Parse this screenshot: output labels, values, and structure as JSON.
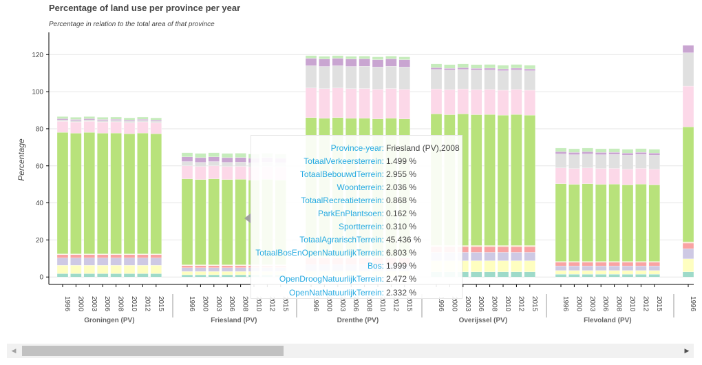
{
  "chart_data": {
    "type": "bar",
    "stacked": true,
    "title": "Percentage of land use per province per year",
    "subtitle": "Percentage in relation to the total area of that province",
    "ylabel": "Percentage",
    "ylim": [
      -4,
      132
    ],
    "yticks": [
      0,
      20,
      40,
      60,
      80,
      100,
      120
    ],
    "grid": true,
    "colors": [
      "#9edac9",
      "#fefec0",
      "#cec9e4",
      "#f9a3a3",
      "#f0cf9e",
      "#f6e1c0",
      "#b8e27b",
      "#fcd8e8",
      "#e0e0e0",
      "#c9a5d1",
      "#c6ecbc"
    ],
    "groups": [
      {
        "name": "Groningen (PV)",
        "years": [
          "1996",
          "2000",
          "2003",
          "2006",
          "2008",
          "2010",
          "2012",
          "2015"
        ],
        "segments": [
          1.8,
          4.5,
          4.0,
          1.8,
          0.2,
          0.2,
          65.5,
          6.0,
          0.8,
          0.6,
          1.2
        ]
      },
      {
        "name": "Friesland (PV)",
        "years": [
          "1996",
          "2000",
          "2003",
          "2006",
          "2008",
          "2010",
          "2012",
          "2015"
        ],
        "segments": [
          1.2,
          1.8,
          2.0,
          1.1,
          0.2,
          0.3,
          46.4,
          7.0,
          2.3,
          2.5,
          2.3
        ]
      },
      {
        "name": "Drenthe (PV)",
        "years": [
          "1996",
          "2000",
          "2003",
          "2006",
          "2008",
          "2010",
          "2012",
          "2015"
        ],
        "segments": [
          0.2,
          3.0,
          3.5,
          3.5,
          0.4,
          0.4,
          75.0,
          16.0,
          12.0,
          4.0,
          1.5
        ]
      },
      {
        "name": "Overijssel (PV)",
        "years": [
          "1996",
          "2000",
          "2003",
          "2006",
          "2008",
          "2010",
          "2012",
          "2015"
        ],
        "segments": [
          2.8,
          6.0,
          4.5,
          3.0,
          0.3,
          0.4,
          71.0,
          13.5,
          10.5,
          1.0,
          2.0
        ]
      },
      {
        "name": "Flevoland (PV)",
        "years": [
          "1996",
          "2000",
          "2003",
          "2006",
          "2008",
          "2010",
          "2012",
          "2015"
        ],
        "segments": [
          1.5,
          2.0,
          2.5,
          2.0,
          0.2,
          0.2,
          42.0,
          8.5,
          7.5,
          1.2,
          2.0
        ]
      },
      {
        "name": "",
        "years": [
          "1996"
        ],
        "segments": [
          2.8,
          7.0,
          5.5,
          3.0,
          0.3,
          0.4,
          62.0,
          22.0,
          18.0,
          4.0,
          0
        ]
      }
    ]
  },
  "tooltip": {
    "rows": [
      {
        "key": "Province-year:",
        "value": "Friesland (PV),2008"
      },
      {
        "key": "TotaalVerkeersterrein:",
        "value": "1.499 %"
      },
      {
        "key": "TotaalBebouwdTerrein:",
        "value": "2.955 %"
      },
      {
        "key": "Woonterrein:",
        "value": "2.036 %"
      },
      {
        "key": "TotaalRecreatieterrein:",
        "value": "0.868 %"
      },
      {
        "key": "ParkEnPlantsoen:",
        "value": "0.162 %"
      },
      {
        "key": "Sportterrein:",
        "value": "0.310 %"
      },
      {
        "key": "TotaalAgrarischTerrein:",
        "value": "45.436 %"
      },
      {
        "key": "TotaalBosEnOpenNatuurlijkTerrein:",
        "value": "6.803 %"
      },
      {
        "key": "Bos:",
        "value": "1.999 %"
      },
      {
        "key": "OpenDroogNatuurlijkTerrein:",
        "value": "2.472 %"
      },
      {
        "key": "OpenNatNatuurlijkTerrein:",
        "value": "2.332 %"
      }
    ]
  },
  "scrollbar": {
    "left_arrow": "◀",
    "right_arrow": "▶"
  }
}
